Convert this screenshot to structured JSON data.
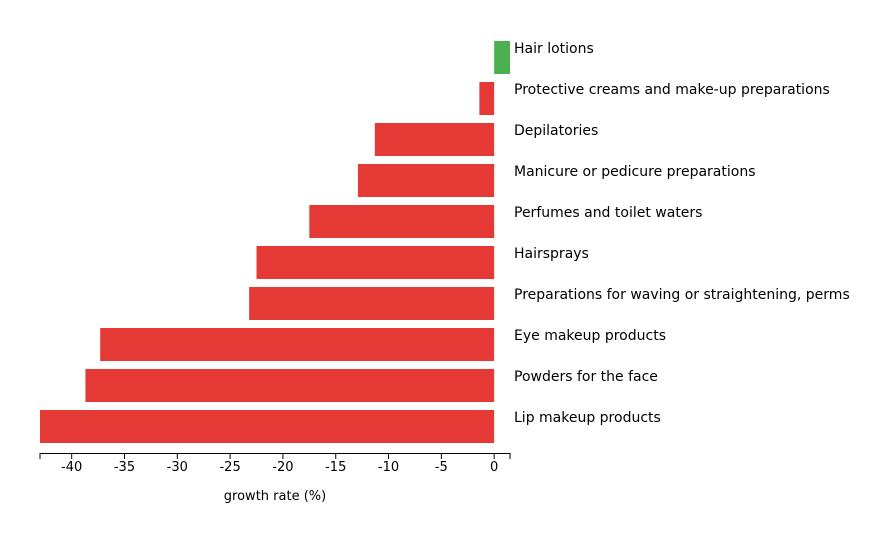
{
  "chart_data": {
    "type": "bar",
    "orientation": "horizontal",
    "title": "",
    "xlabel": "growth rate (%)",
    "ylabel": "",
    "xlim": [
      -43,
      1.5
    ],
    "xticks": [
      -40,
      -35,
      -30,
      -25,
      -20,
      -15,
      -10,
      -5,
      0
    ],
    "xtick_labels": [
      "-40",
      "-35",
      "-30",
      "-25",
      "-20",
      "-15",
      "-10",
      "-5",
      "0"
    ],
    "grid": false,
    "legend": "none",
    "colors": {
      "positive": "#4caf50",
      "negative": "#e53935"
    },
    "categories": [
      "Hair lotions",
      "Protective creams and make-up preparations",
      "Depilatories",
      "Manicure or pedicure preparations",
      "Perfumes and toilet waters",
      "Hairsprays",
      "Preparations for waving or straightening, perms",
      "Eye makeup products",
      "Powders for the face",
      "Lip makeup products"
    ],
    "values": [
      1.5,
      -1.4,
      -11.3,
      -12.9,
      -17.5,
      -22.5,
      -23.2,
      -37.3,
      -38.7,
      -43.0
    ]
  }
}
